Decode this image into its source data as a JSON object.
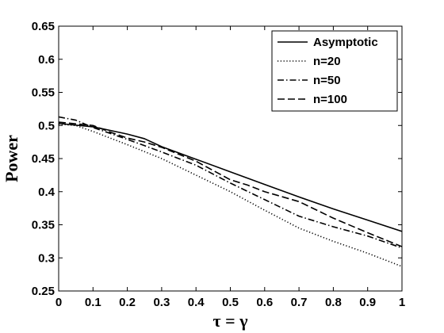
{
  "chart_data": {
    "type": "line",
    "title": "",
    "xlabel": "τ = γ",
    "ylabel": "Power",
    "xlim": [
      0,
      1
    ],
    "ylim": [
      0.25,
      0.65
    ],
    "xticks": [
      "0",
      "0.1",
      "0.2",
      "0.3",
      "0.4",
      "0.5",
      "0.6",
      "0.7",
      "0.8",
      "0.9",
      "1"
    ],
    "xtick_values": [
      0,
      0.1,
      0.2,
      0.3,
      0.4,
      0.5,
      0.6,
      0.7,
      0.8,
      0.9,
      1
    ],
    "yticks": [
      "0.25",
      "0.3",
      "0.35",
      "0.4",
      "0.45",
      "0.5",
      "0.55",
      "0.6",
      "0.65"
    ],
    "ytick_values": [
      0.25,
      0.3,
      0.35,
      0.4,
      0.45,
      0.5,
      0.55,
      0.6,
      0.65
    ],
    "grid": false,
    "legend_position": "top-right",
    "series": [
      {
        "name": "Asymptotic",
        "style": "solid",
        "color": "#000000",
        "x": [
          0,
          0.1,
          0.2,
          0.25,
          0.3,
          0.4,
          0.5,
          0.6,
          0.7,
          0.8,
          0.9,
          1.0
        ],
        "y": [
          0.503,
          0.498,
          0.487,
          0.48,
          0.468,
          0.449,
          0.43,
          0.411,
          0.392,
          0.374,
          0.357,
          0.34
        ]
      },
      {
        "name": "n=20",
        "style": "dotted",
        "color": "#000000",
        "x": [
          0,
          0.05,
          0.1,
          0.15,
          0.2,
          0.3,
          0.4,
          0.5,
          0.6,
          0.7,
          0.8,
          0.9,
          1.0
        ],
        "y": [
          0.502,
          0.5,
          0.491,
          0.481,
          0.471,
          0.45,
          0.425,
          0.4,
          0.372,
          0.345,
          0.325,
          0.307,
          0.287
        ]
      },
      {
        "name": "n=50",
        "style": "dashdot",
        "color": "#000000",
        "x": [
          0,
          0.05,
          0.1,
          0.15,
          0.2,
          0.3,
          0.4,
          0.5,
          0.6,
          0.7,
          0.8,
          0.9,
          1.0
        ],
        "y": [
          0.513,
          0.508,
          0.497,
          0.488,
          0.479,
          0.46,
          0.44,
          0.413,
          0.388,
          0.363,
          0.347,
          0.333,
          0.315
        ]
      },
      {
        "name": "n=100",
        "style": "dashed",
        "color": "#000000",
        "x": [
          0,
          0.1,
          0.15,
          0.2,
          0.25,
          0.3,
          0.4,
          0.5,
          0.55,
          0.6,
          0.7,
          0.8,
          0.9,
          1.0
        ],
        "y": [
          0.505,
          0.5,
          0.49,
          0.481,
          0.475,
          0.467,
          0.446,
          0.418,
          0.41,
          0.4,
          0.385,
          0.36,
          0.338,
          0.317
        ]
      }
    ]
  }
}
